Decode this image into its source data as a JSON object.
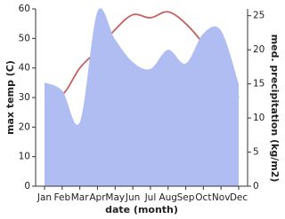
{
  "chart_data": {
    "type": "line-area",
    "x_label": "date (month)",
    "y_label": "max temp (C)",
    "y2_label": "med. precipitation (kg/m2)",
    "categories": [
      "Jan",
      "Feb",
      "Mar",
      "Apr",
      "May",
      "Jun",
      "Jul",
      "Aug",
      "Sep",
      "Oct",
      "Nov",
      "Dec"
    ],
    "ylim": [
      0,
      60
    ],
    "yticks": [
      0,
      10,
      20,
      30,
      40,
      50,
      60
    ],
    "y2lim": [
      0,
      26
    ],
    "y2ticks": [
      0,
      5,
      10,
      15,
      20,
      25
    ],
    "grid": false,
    "series": [
      {
        "name": "max temp",
        "color": "#c65f5f",
        "kind": "line",
        "axis": "y",
        "values": [
          32,
          31,
          40,
          46,
          53,
          58,
          57,
          59,
          55,
          48,
          38,
          30
        ]
      },
      {
        "name": "med. precipitation",
        "color": "#b0bdf2",
        "kind": "area",
        "axis": "y2",
        "values": [
          15.2,
          14,
          9.4,
          25.6,
          21.5,
          18.2,
          17.2,
          20,
          18,
          22.4,
          22.8,
          15
        ]
      }
    ]
  }
}
